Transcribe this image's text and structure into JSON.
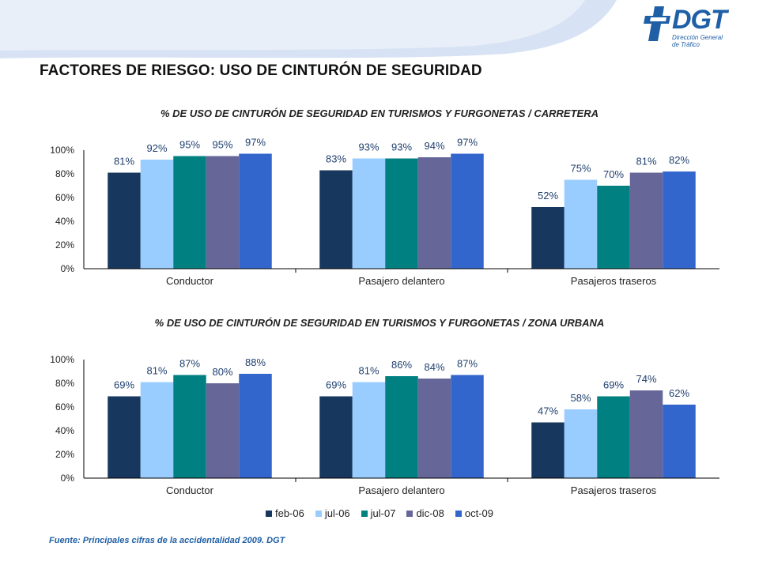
{
  "page": {
    "title": "FACTORES DE RIESGO: USO DE CINTURÓN DE SEGURIDAD",
    "source": "Fuente:  Principales cifras de la accidentalidad 2009. DGT"
  },
  "logo": {
    "text": "DGT",
    "subtitle": "Dirección General\nde Tráfico"
  },
  "colors": {
    "accent": "#1f5fa6",
    "swoosh": "#d7e3f4"
  },
  "legend": [
    {
      "name": "feb-06",
      "color": "#17375e"
    },
    {
      "name": "jul-06",
      "color": "#99ccff"
    },
    {
      "name": "jul-07",
      "color": "#008080"
    },
    {
      "name": "dic-08",
      "color": "#666699"
    },
    {
      "name": "oct-09",
      "color": "#3366cc"
    }
  ],
  "chart_data": [
    {
      "type": "bar",
      "title": "% DE USO DE CINTURÓN DE SEGURIDAD EN TURISMOS Y FURGONETAS / CARRETERA",
      "categories": [
        "Conductor",
        "Pasajero delantero",
        "Pasajeros traseros"
      ],
      "yticks": [
        "0%",
        "20%",
        "40%",
        "60%",
        "80%",
        "100%"
      ],
      "ylim": [
        0,
        100
      ],
      "series": [
        {
          "name": "feb-06",
          "values": [
            81,
            83,
            52
          ]
        },
        {
          "name": "jul-06",
          "values": [
            92,
            93,
            75
          ]
        },
        {
          "name": "jul-07",
          "values": [
            95,
            93,
            70
          ]
        },
        {
          "name": "dic-08",
          "values": [
            95,
            94,
            81
          ]
        },
        {
          "name": "oct-09",
          "values": [
            97,
            97,
            82
          ]
        }
      ],
      "labels": [
        [
          "81%",
          "83%",
          "52%"
        ],
        [
          "92%",
          "93%",
          "75%"
        ],
        [
          "95%",
          "93%",
          "70%"
        ],
        [
          "95%",
          "94%",
          "81%"
        ],
        [
          "97%",
          "97%",
          "82%"
        ]
      ]
    },
    {
      "type": "bar",
      "title": "% DE USO DE CINTURÓN DE SEGURIDAD EN TURISMOS Y FURGONETAS / ZONA URBANA",
      "categories": [
        "Conductor",
        "Pasajero delantero",
        "Pasajeros traseros"
      ],
      "yticks": [
        "0%",
        "20%",
        "40%",
        "60%",
        "80%",
        "100%"
      ],
      "ylim": [
        0,
        100
      ],
      "series": [
        {
          "name": "feb-06",
          "values": [
            69,
            69,
            47
          ]
        },
        {
          "name": "jul-06",
          "values": [
            81,
            81,
            58
          ]
        },
        {
          "name": "jul-07",
          "values": [
            87,
            86,
            69
          ]
        },
        {
          "name": "dic-08",
          "values": [
            80,
            84,
            74
          ]
        },
        {
          "name": "oct-09",
          "values": [
            88,
            87,
            62
          ]
        }
      ],
      "labels": [
        [
          "69%",
          "69%",
          "47%"
        ],
        [
          "81%",
          "81%",
          "58%"
        ],
        [
          "87%",
          "86%",
          "69%"
        ],
        [
          "80%",
          "84%",
          "74%"
        ],
        [
          "88%",
          "87%",
          "62%"
        ]
      ]
    }
  ]
}
